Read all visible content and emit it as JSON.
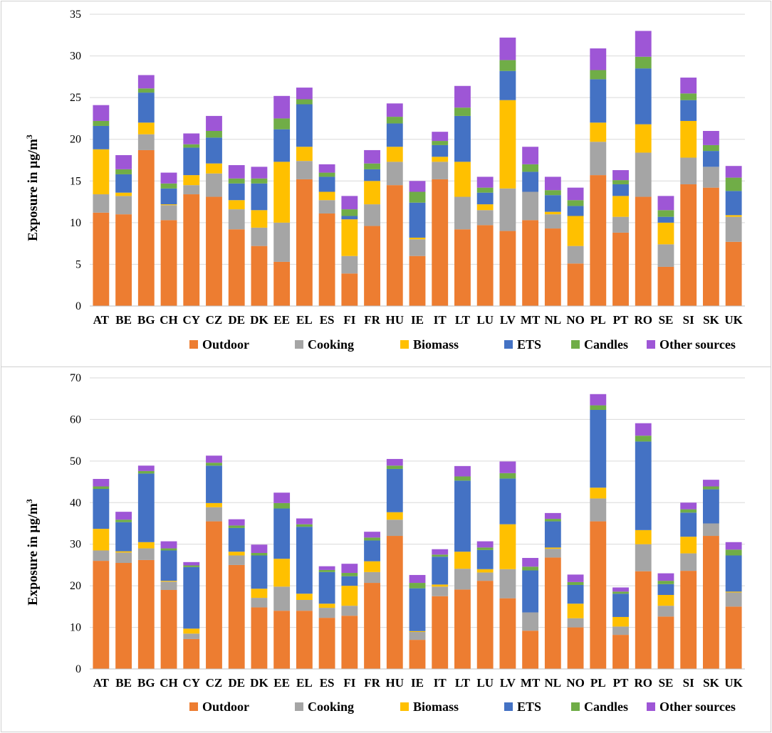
{
  "colors": {
    "Outdoor": "#ED7D31",
    "Cooking": "#A5A5A5",
    "Biomass": "#FFC000",
    "ETS": "#4472C4",
    "Candles": "#70AD47",
    "Other sources": "#9E56D6"
  },
  "chart_data": [
    {
      "type": "bar",
      "stacked": true,
      "title": "",
      "xlabel": "",
      "ylabel": "Exposure in µg/m",
      "ylabel_superscript": "3",
      "ylim": [
        0,
        35
      ],
      "yticks": [
        0,
        5,
        10,
        15,
        20,
        25,
        30,
        35
      ],
      "legend_position": "bottom",
      "categories": [
        "AT",
        "BE",
        "BG",
        "CH",
        "CY",
        "CZ",
        "DE",
        "DK",
        "EE",
        "EL",
        "ES",
        "FI",
        "FR",
        "HU",
        "IE",
        "IT",
        "LT",
        "LU",
        "LV",
        "MT",
        "NL",
        "NO",
        "PL",
        "PT",
        "RO",
        "SE",
        "SI",
        "SK",
        "UK"
      ],
      "series": [
        {
          "name": "Outdoor",
          "values": [
            11.2,
            11.0,
            18.7,
            10.3,
            13.4,
            13.1,
            9.2,
            7.2,
            5.3,
            15.2,
            11.1,
            3.9,
            9.6,
            14.5,
            6.0,
            15.2,
            9.2,
            9.7,
            9.0,
            10.3,
            9.3,
            5.1,
            15.7,
            8.8,
            13.1,
            4.7,
            14.6,
            14.2,
            7.7
          ]
        },
        {
          "name": "Cooking",
          "values": [
            2.2,
            2.2,
            1.9,
            1.8,
            1.1,
            2.8,
            2.4,
            2.2,
            4.7,
            2.2,
            1.6,
            2.1,
            2.6,
            2.8,
            2.0,
            2.1,
            3.9,
            1.8,
            5.1,
            3.4,
            1.7,
            2.1,
            4.0,
            1.9,
            5.3,
            2.7,
            3.2,
            2.5,
            3.0
          ]
        },
        {
          "name": "Biomass",
          "values": [
            5.4,
            0.4,
            1.4,
            0.1,
            1.2,
            1.2,
            1.1,
            2.1,
            7.3,
            1.7,
            1.0,
            4.4,
            2.8,
            1.8,
            0.2,
            0.6,
            4.2,
            0.7,
            10.6,
            0.0,
            0.3,
            3.6,
            2.3,
            2.5,
            3.4,
            2.6,
            4.4,
            0.0,
            0.2
          ]
        },
        {
          "name": "ETS",
          "values": [
            2.8,
            2.2,
            3.6,
            1.9,
            3.3,
            3.1,
            2.0,
            3.2,
            3.9,
            5.1,
            1.8,
            0.4,
            1.4,
            2.8,
            4.2,
            1.4,
            5.5,
            1.4,
            3.5,
            2.4,
            2.0,
            1.2,
            5.2,
            1.4,
            6.7,
            0.7,
            2.5,
            1.9,
            2.9
          ]
        },
        {
          "name": "Candles",
          "values": [
            0.6,
            0.6,
            0.5,
            0.6,
            0.4,
            0.8,
            0.6,
            0.6,
            1.3,
            0.6,
            0.5,
            0.8,
            0.7,
            0.8,
            1.3,
            0.5,
            1.0,
            0.6,
            1.3,
            0.9,
            0.6,
            0.7,
            1.1,
            0.5,
            1.4,
            0.8,
            0.8,
            0.7,
            1.6
          ]
        },
        {
          "name": "Other sources",
          "values": [
            1.9,
            1.7,
            1.6,
            1.3,
            1.3,
            1.8,
            1.6,
            1.4,
            2.7,
            1.4,
            1.0,
            1.6,
            1.6,
            1.6,
            1.3,
            1.1,
            2.6,
            1.3,
            2.7,
            2.1,
            1.6,
            1.5,
            2.6,
            1.2,
            3.1,
            1.7,
            1.9,
            1.7,
            1.4
          ]
        }
      ]
    },
    {
      "type": "bar",
      "stacked": true,
      "title": "",
      "xlabel": "",
      "ylabel": "Exposure in µg/m",
      "ylabel_superscript": "3",
      "ylim": [
        0,
        70
      ],
      "yticks": [
        0,
        10,
        20,
        30,
        40,
        50,
        60,
        70
      ],
      "legend_position": "bottom",
      "categories": [
        "AT",
        "BE",
        "BG",
        "CH",
        "CY",
        "CZ",
        "DE",
        "DK",
        "EE",
        "EL",
        "ES",
        "FI",
        "FR",
        "HU",
        "IE",
        "IT",
        "LT",
        "LU",
        "LV",
        "MT",
        "NL",
        "NO",
        "PL",
        "PT",
        "RO",
        "SE",
        "SI",
        "SK",
        "UK"
      ],
      "series": [
        {
          "name": "Outdoor",
          "values": [
            26.0,
            25.5,
            26.2,
            19.0,
            7.2,
            35.5,
            25.0,
            14.8,
            14.0,
            14.0,
            12.3,
            12.8,
            20.7,
            32.0,
            7.0,
            17.5,
            19.1,
            21.2,
            17.0,
            9.2,
            26.8,
            10.0,
            35.5,
            8.2,
            23.5,
            12.6,
            23.6,
            32.0,
            15.0
          ]
        },
        {
          "name": "Cooking",
          "values": [
            2.5,
            2.5,
            2.8,
            2.0,
            1.3,
            3.4,
            2.3,
            2.3,
            5.8,
            2.6,
            2.4,
            2.4,
            2.6,
            3.9,
            1.9,
            2.3,
            5.0,
            2.0,
            7.0,
            4.4,
            2.1,
            2.2,
            5.5,
            2.0,
            6.5,
            2.6,
            4.2,
            3.0,
            3.4
          ]
        },
        {
          "name": "Biomass",
          "values": [
            5.2,
            0.3,
            1.5,
            0.2,
            1.2,
            1.0,
            0.9,
            2.2,
            6.7,
            1.5,
            1.0,
            4.8,
            2.6,
            1.8,
            0.2,
            0.5,
            4.1,
            0.8,
            10.8,
            0.0,
            0.3,
            3.5,
            2.6,
            2.3,
            3.4,
            2.6,
            4.0,
            0.0,
            0.2
          ]
        },
        {
          "name": "ETS",
          "values": [
            9.6,
            7.0,
            16.5,
            7.3,
            14.8,
            9.0,
            5.7,
            8.0,
            12.1,
            16.1,
            7.6,
            2.3,
            5.0,
            10.4,
            10.3,
            6.7,
            17.1,
            4.6,
            11.0,
            10.1,
            6.3,
            4.5,
            18.7,
            5.6,
            21.3,
            2.6,
            5.8,
            8.2,
            8.7
          ]
        },
        {
          "name": "Candles",
          "values": [
            0.6,
            0.6,
            0.6,
            0.5,
            0.4,
            0.7,
            0.6,
            0.6,
            1.3,
            0.6,
            0.5,
            0.8,
            0.7,
            0.8,
            1.3,
            0.5,
            1.0,
            0.6,
            1.3,
            0.9,
            0.6,
            0.7,
            1.1,
            0.5,
            1.4,
            0.8,
            0.8,
            0.7,
            1.4
          ]
        },
        {
          "name": "Other sources",
          "values": [
            1.8,
            1.9,
            1.3,
            1.7,
            0.8,
            1.7,
            1.5,
            2.0,
            2.5,
            1.4,
            0.9,
            2.2,
            1.4,
            1.6,
            1.9,
            1.3,
            2.5,
            1.5,
            2.8,
            2.1,
            1.4,
            1.8,
            2.7,
            1.0,
            3.0,
            1.8,
            1.6,
            1.6,
            1.8
          ]
        }
      ]
    }
  ]
}
